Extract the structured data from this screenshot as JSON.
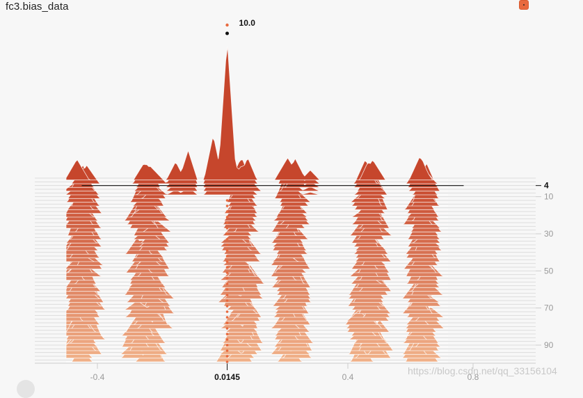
{
  "card": {
    "title": "fc3.bias_data"
  },
  "watermark": "https://blog.csdn.net/qq_33156104",
  "colors": {
    "accent": "#e8693e",
    "front": "#c6452b",
    "back": "#f0b088",
    "baseline": "#dddddd",
    "axis_text": "#999999"
  },
  "chart_data": {
    "type": "area",
    "subtype": "histogram-offset",
    "title": "fc3.bias_data",
    "x_ticks": [
      {
        "value": -0.4,
        "label": "-0.4"
      },
      {
        "value": 0.4,
        "label": "0.4"
      },
      {
        "value": 0.8,
        "label": "0.8"
      }
    ],
    "y_ticks": [
      {
        "value": 10,
        "label": "10"
      },
      {
        "value": 30,
        "label": "30"
      },
      {
        "value": 50,
        "label": "50"
      },
      {
        "value": 70,
        "label": "70"
      },
      {
        "value": 90,
        "label": "90"
      }
    ],
    "xlim": [
      -0.6,
      1.0
    ],
    "step_range": [
      0,
      99
    ],
    "hover": {
      "step": 4,
      "step_label": "4",
      "x": 0.0145,
      "x_label": "0.0145",
      "count": 10.0,
      "count_label": "10.0"
    },
    "clusters": [
      {
        "center": -0.45,
        "width": 0.08
      },
      {
        "center": -0.24,
        "width": 0.1
      },
      {
        "center": 0.06,
        "width": 0.08
      },
      {
        "center": 0.22,
        "width": 0.07
      },
      {
        "center": 0.47,
        "width": 0.08
      },
      {
        "center": 0.64,
        "width": 0.06
      }
    ],
    "front_peaks": [
      {
        "x": -0.15,
        "h": 1.3
      },
      {
        "x": -0.11,
        "h": 2.1
      },
      {
        "x": -0.03,
        "h": 3.2
      },
      {
        "x": 0.0145,
        "h": 10.0
      },
      {
        "x": 0.08,
        "h": 1.6
      },
      {
        "x": 0.23,
        "h": 1.2
      },
      {
        "x": 0.28,
        "h": 0.7
      }
    ],
    "grid": false,
    "legend": "none"
  }
}
